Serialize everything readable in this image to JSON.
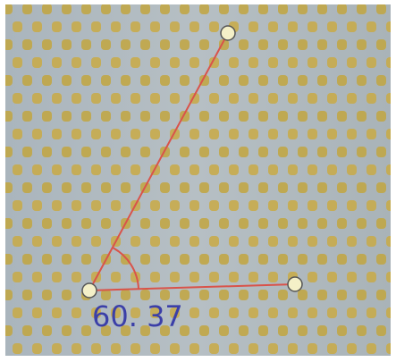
{
  "measurement": {
    "label": "60. 37"
  }
}
